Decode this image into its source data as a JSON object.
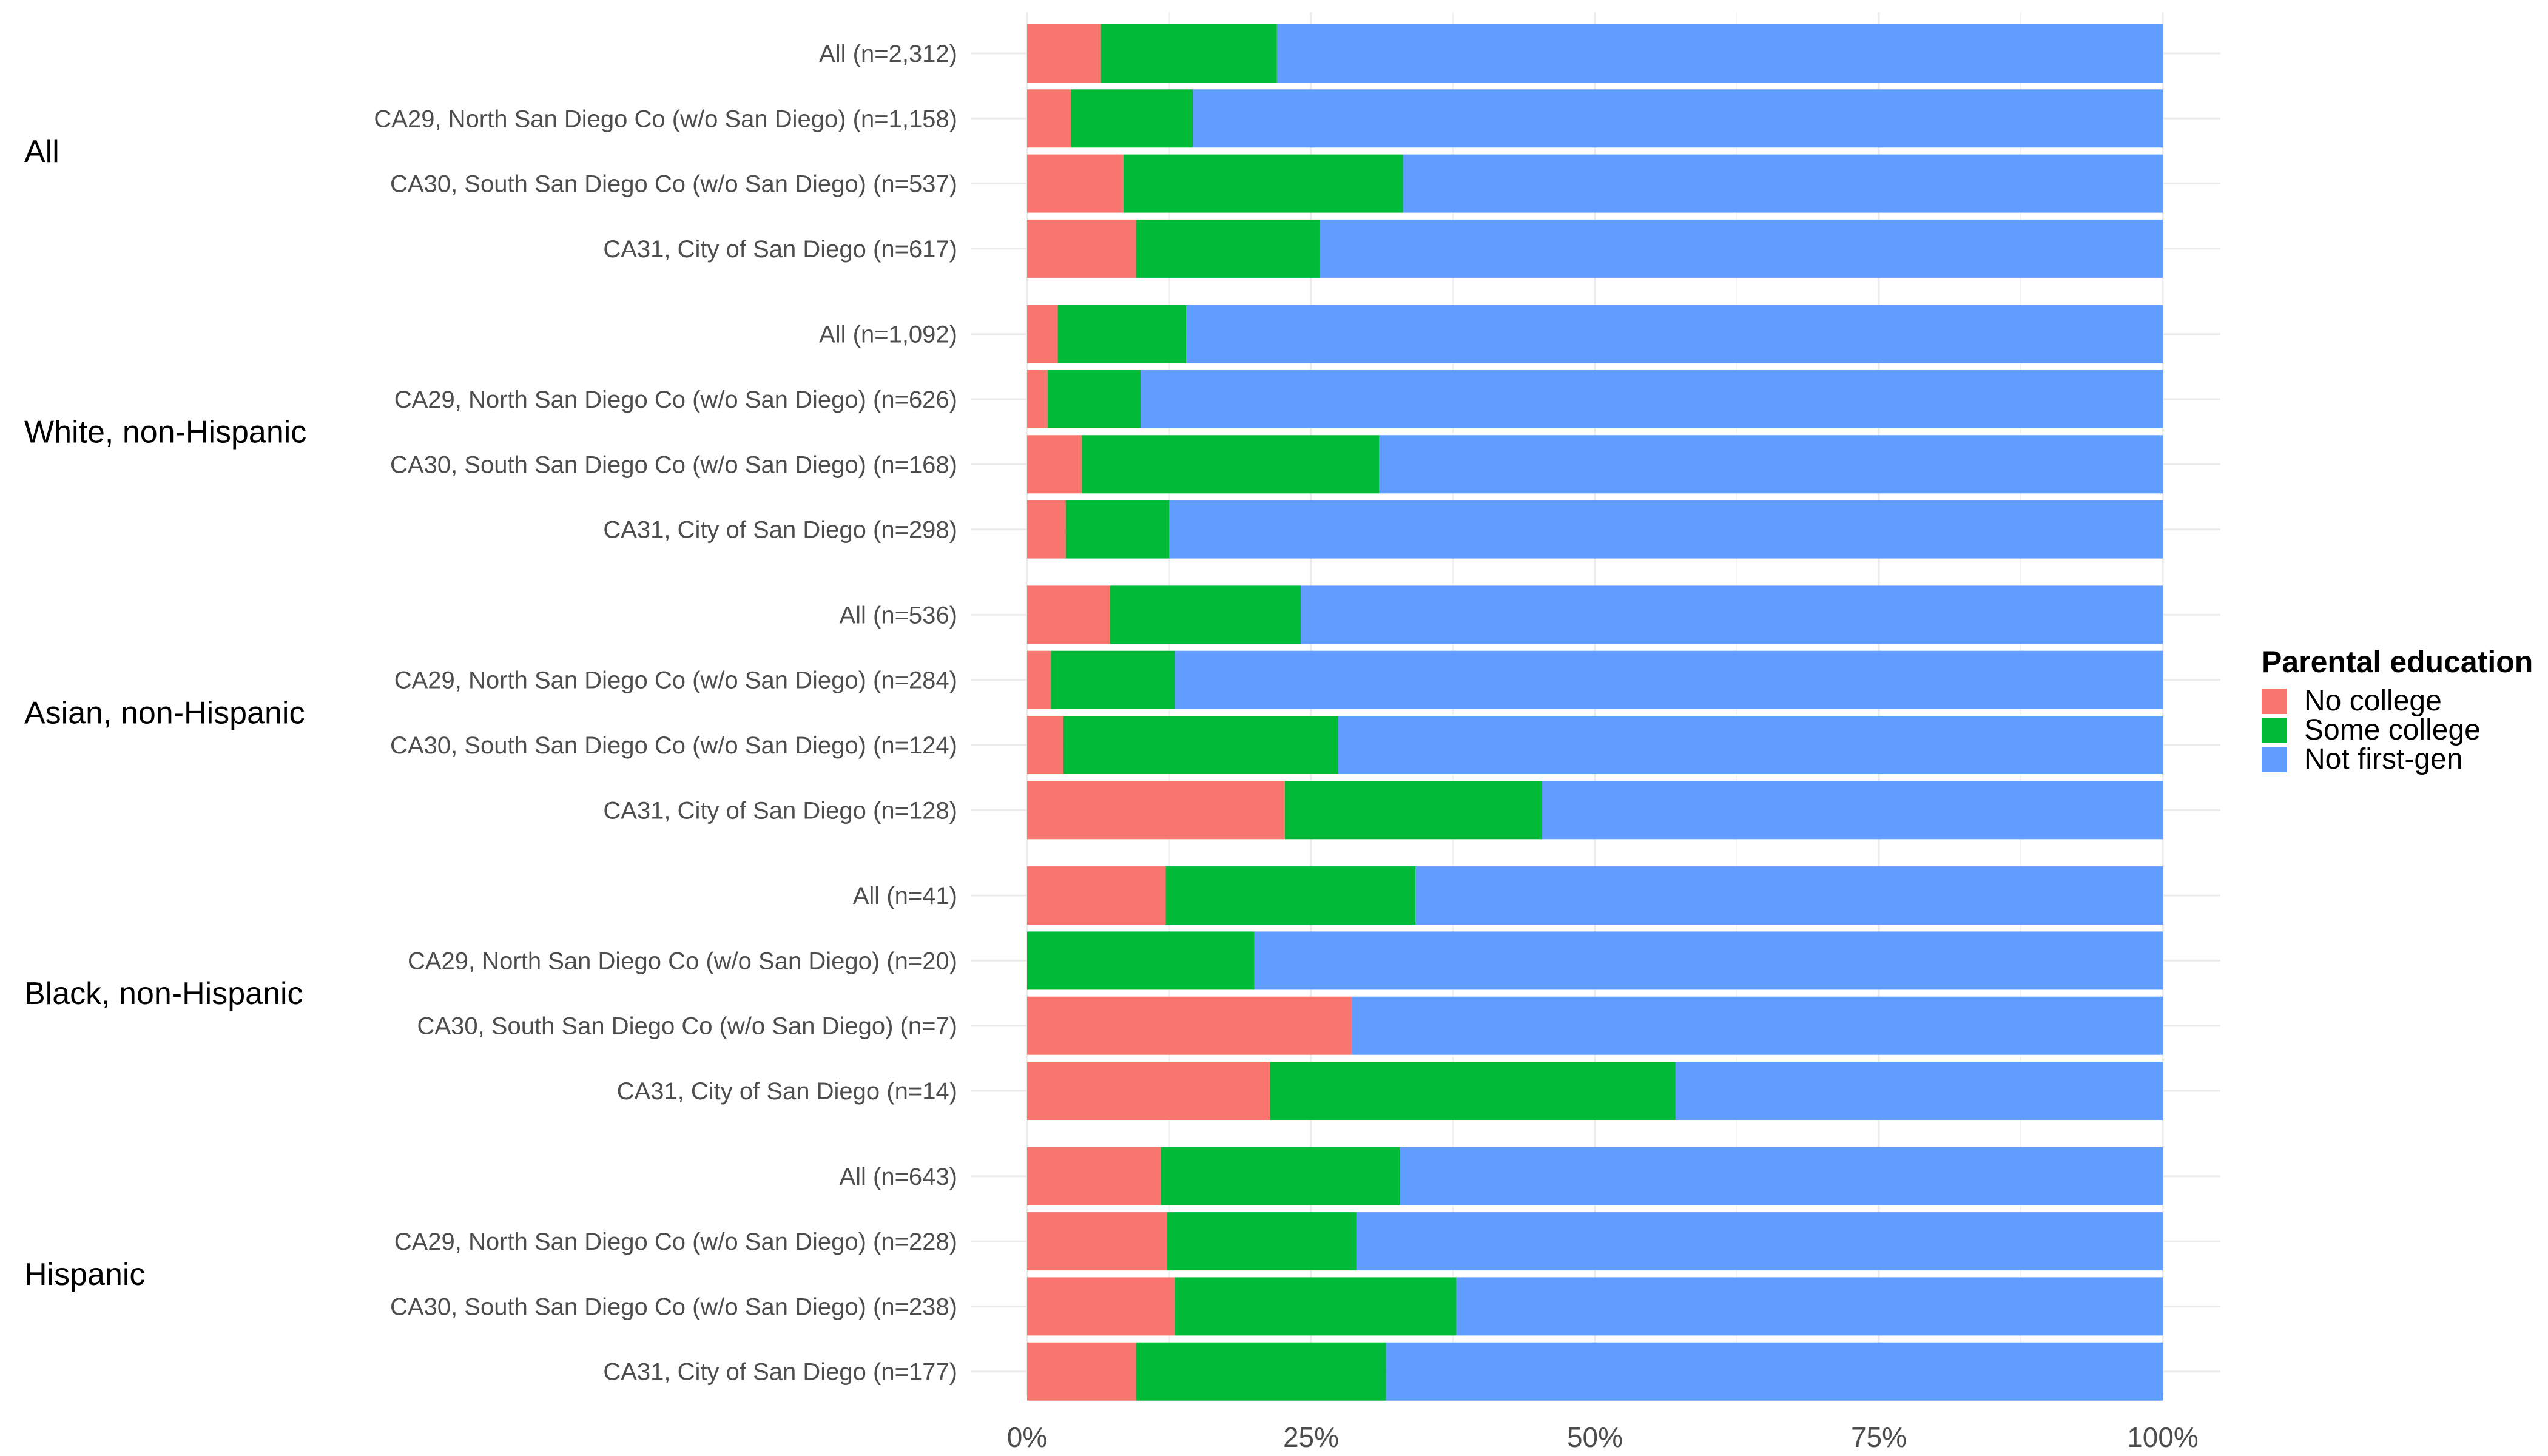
{
  "chart_data": {
    "type": "bar",
    "orientation": "horizontal",
    "stacked": "percent",
    "grid": true,
    "legend_position": "right",
    "xlim": [
      0,
      100
    ],
    "x_ticks": [
      "0%",
      "25%",
      "50%",
      "75%",
      "100%"
    ],
    "legend": {
      "title": "Parental education",
      "entries": [
        {
          "label": "No college",
          "color": "#F8766D"
        },
        {
          "label": "Some college",
          "color": "#00BA38"
        },
        {
          "label": "Not first-gen",
          "color": "#619CFF"
        }
      ]
    },
    "groups": [
      {
        "label": "All",
        "rows": [
          {
            "label": "All (n=2,312)",
            "values": [
              6.5,
              15.5,
              78.0
            ]
          },
          {
            "label": "CA29, North San Diego Co (w/o San Diego) (n=1,158)",
            "values": [
              3.9,
              10.7,
              85.4
            ]
          },
          {
            "label": "CA30, South San Diego Co (w/o San Diego) (n=537)",
            "values": [
              8.5,
              24.6,
              66.9
            ]
          },
          {
            "label": "CA31, City of San Diego (n=617)",
            "values": [
              9.6,
              16.2,
              74.2
            ]
          }
        ]
      },
      {
        "label": "White, non-Hispanic",
        "rows": [
          {
            "label": "All (n=1,092)",
            "values": [
              2.7,
              11.3,
              86.0
            ]
          },
          {
            "label": "CA29, North San Diego Co (w/o San Diego) (n=626)",
            "values": [
              1.8,
              8.2,
              90.0
            ]
          },
          {
            "label": "CA30, South San Diego Co (w/o San Diego) (n=168)",
            "values": [
              4.8,
              26.2,
              69.0
            ]
          },
          {
            "label": "CA31, City of San Diego (n=298)",
            "values": [
              3.4,
              9.1,
              87.5
            ]
          }
        ]
      },
      {
        "label": "Asian, non-Hispanic",
        "rows": [
          {
            "label": "All (n=536)",
            "values": [
              7.3,
              16.8,
              75.9
            ]
          },
          {
            "label": "CA29, North San Diego Co (w/o San Diego) (n=284)",
            "values": [
              2.1,
              10.9,
              87.0
            ]
          },
          {
            "label": "CA30, South San Diego Co (w/o San Diego) (n=124)",
            "values": [
              3.2,
              24.2,
              72.6
            ]
          },
          {
            "label": "CA31, City of San Diego (n=128)",
            "values": [
              22.7,
              22.6,
              54.7
            ]
          }
        ]
      },
      {
        "label": "Black, non-Hispanic",
        "rows": [
          {
            "label": "All (n=41)",
            "values": [
              12.2,
              22.0,
              65.8
            ]
          },
          {
            "label": "CA29, North San Diego Co (w/o San Diego) (n=20)",
            "values": [
              0.0,
              20.0,
              80.0
            ]
          },
          {
            "label": "CA30, South San Diego Co (w/o San Diego) (n=7)",
            "values": [
              28.6,
              0.0,
              71.4
            ]
          },
          {
            "label": "CA31, City of San Diego (n=14)",
            "values": [
              21.4,
              35.7,
              42.9
            ]
          }
        ]
      },
      {
        "label": "Hispanic",
        "rows": [
          {
            "label": "All (n=643)",
            "values": [
              11.8,
              21.0,
              67.2
            ]
          },
          {
            "label": "CA29, North San Diego Co (w/o San Diego) (n=228)",
            "values": [
              12.3,
              16.7,
              71.0
            ]
          },
          {
            "label": "CA30, South San Diego Co (w/o San Diego) (n=238)",
            "values": [
              13.0,
              24.8,
              62.2
            ]
          },
          {
            "label": "CA31, City of San Diego (n=177)",
            "values": [
              9.6,
              22.0,
              68.4
            ]
          }
        ]
      }
    ]
  }
}
